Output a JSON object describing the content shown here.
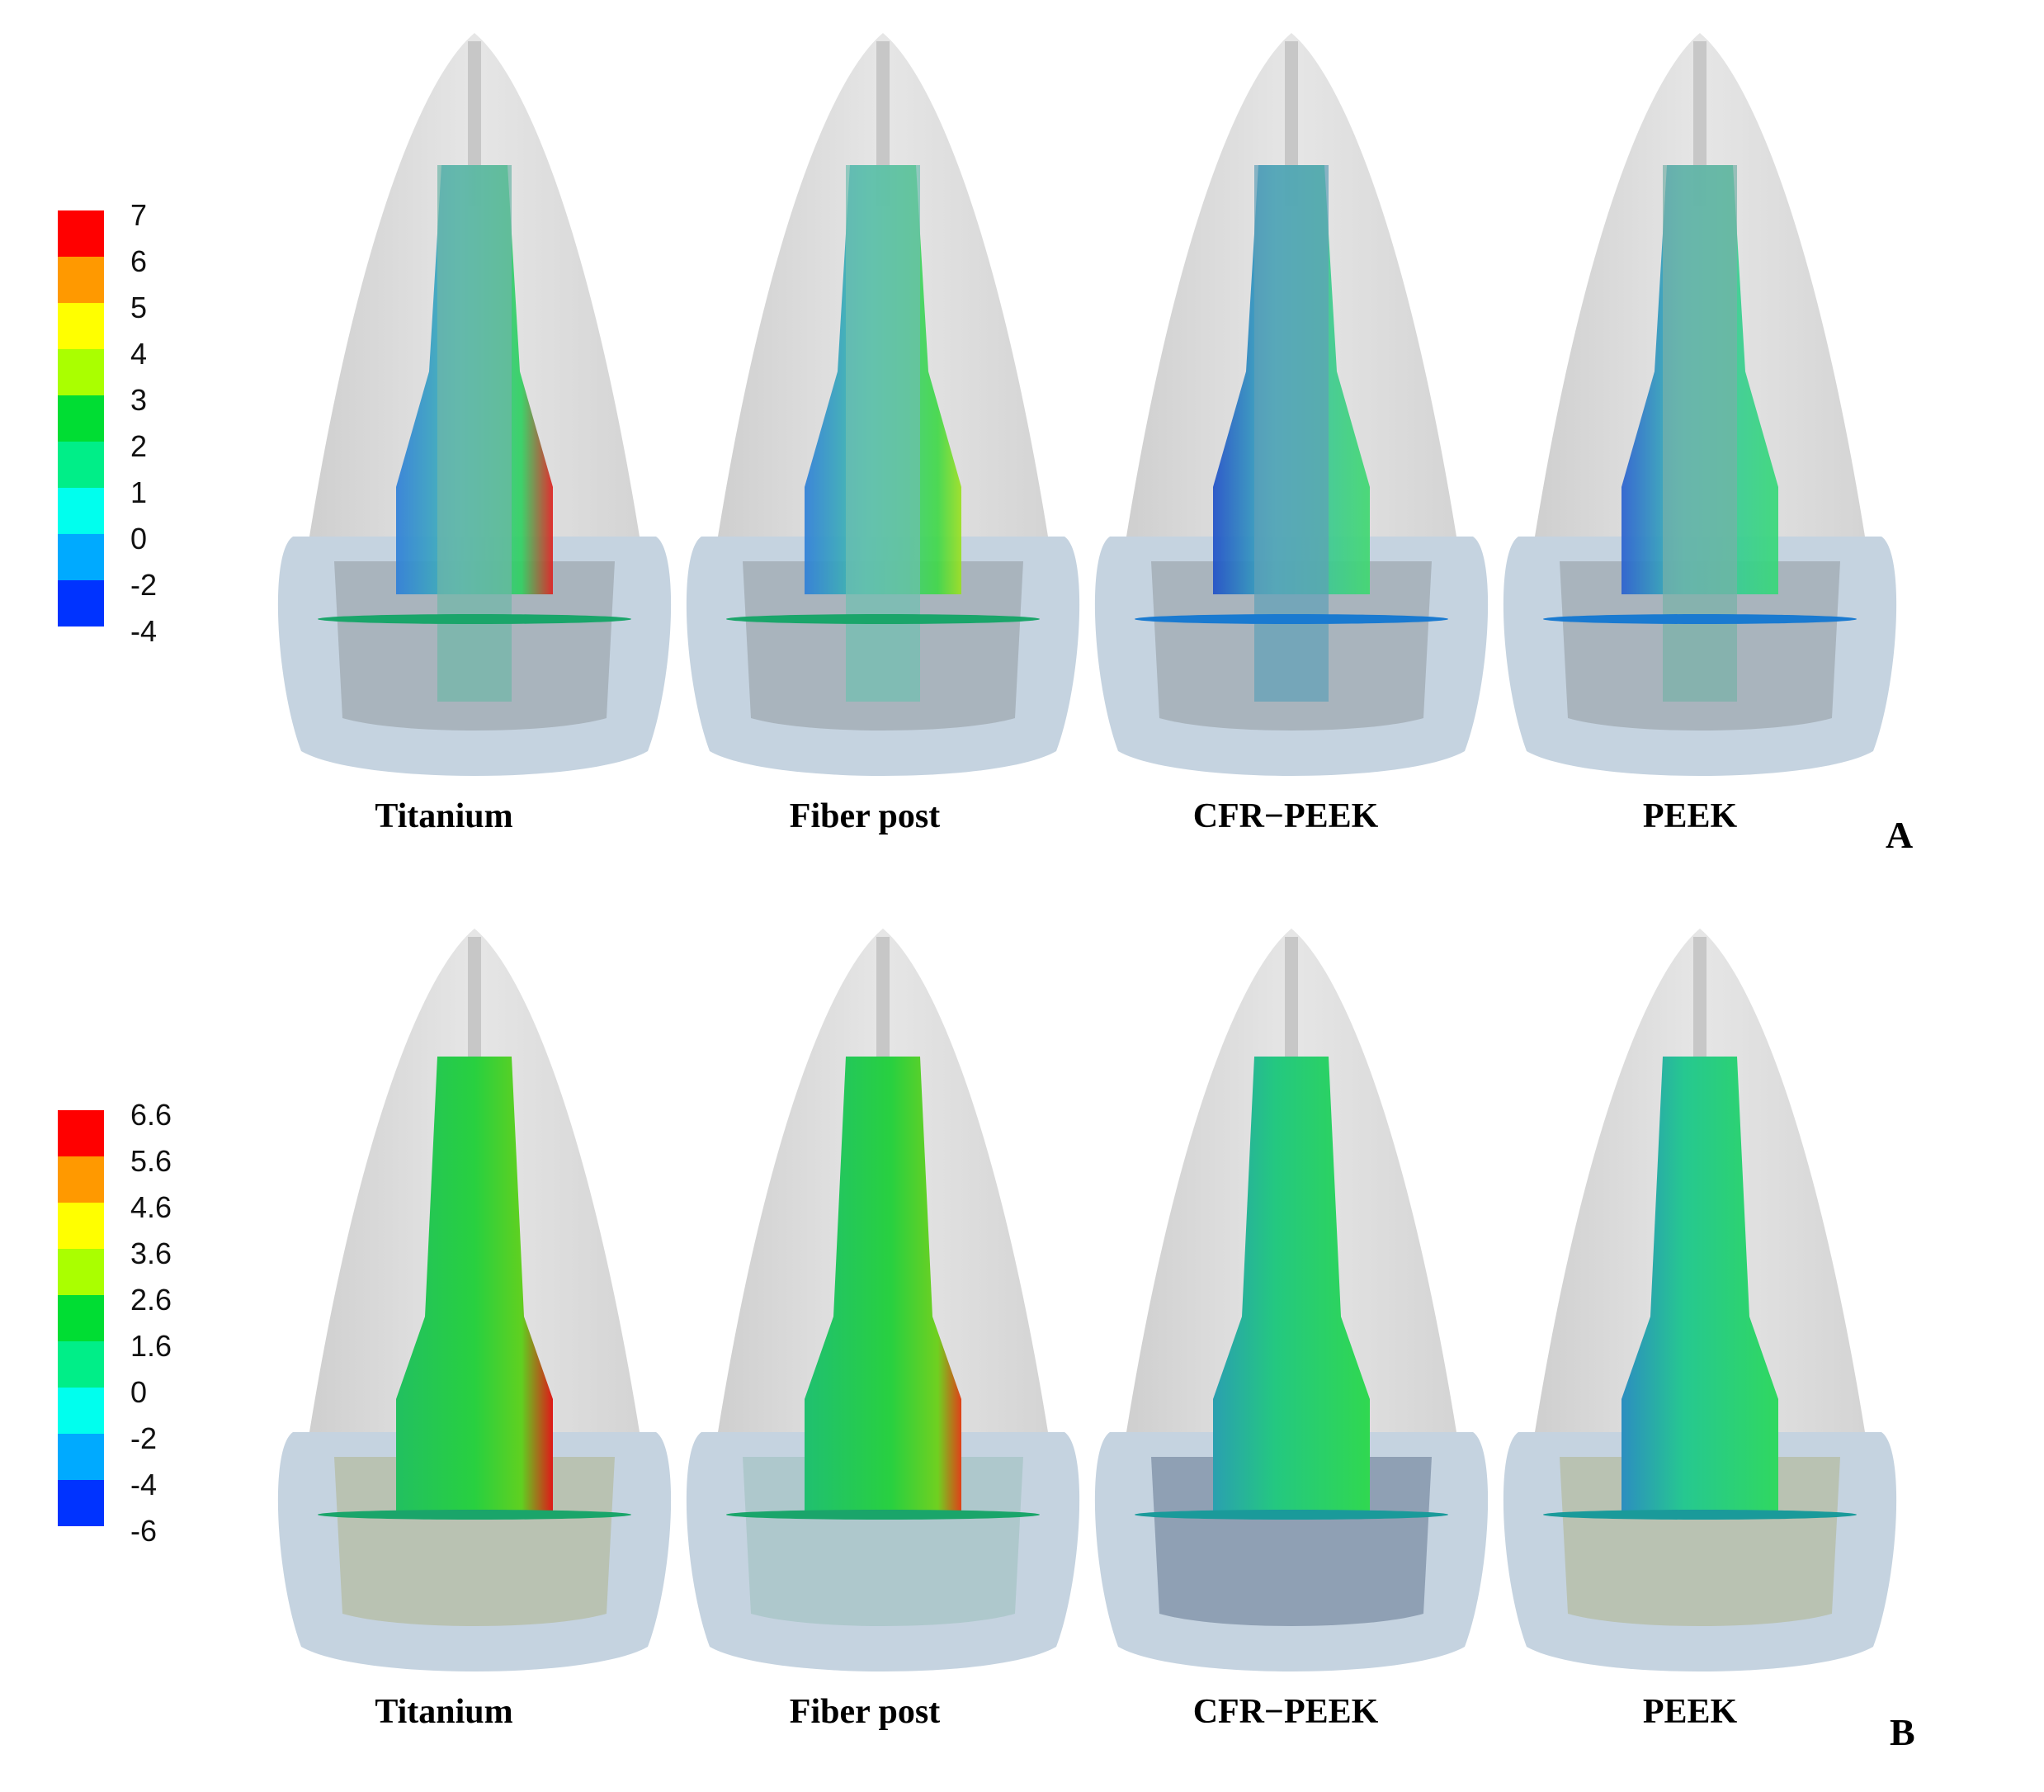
{
  "panels": [
    {
      "letter": "A",
      "scale_labels": [
        "7",
        "6",
        "5",
        "4",
        "3",
        "2",
        "1",
        "0",
        "-2",
        "-4"
      ],
      "captions": [
        "Titanium",
        "Fiber post",
        "CFR−PEEK",
        "PEEK"
      ]
    },
    {
      "letter": "B",
      "scale_labels": [
        "6.6",
        "5.6",
        "4.6",
        "3.6",
        "2.6",
        "1.6",
        "0",
        "-2",
        "-4",
        "-6"
      ],
      "captions": [
        "Titanium",
        "Fiber post",
        "CFR−PEEK",
        "PEEK"
      ]
    }
  ],
  "scale_colors": [
    "#ff0000",
    "#ff9900",
    "#ffff00",
    "#aaff00",
    "#00dd33",
    "#00ee88",
    "#00ffee",
    "#00aaff",
    "#0033ff"
  ],
  "post_icons": [
    "post-icon-titanium",
    "post-icon-fiber",
    "post-icon-cfr-peek",
    "post-icon-peek"
  ]
}
